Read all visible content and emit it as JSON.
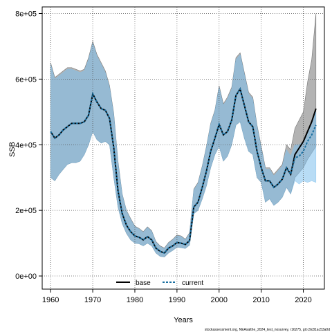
{
  "chart_data": {
    "type": "line",
    "title": "",
    "xlabel": "Years",
    "ylabel": "SSB",
    "xlim": [
      1958,
      2025
    ],
    "ylim": [
      -40000,
      820000
    ],
    "x_ticks": [
      1960,
      1970,
      1980,
      1990,
      2000,
      2010,
      2020
    ],
    "y_ticks": [
      0,
      200000,
      400000,
      600000,
      800000
    ],
    "y_tick_labels": [
      "0e+00",
      "2e+05",
      "4e+05",
      "6e+05",
      "8e+05"
    ],
    "grid": true,
    "legend_position": "bottom-center",
    "x": [
      1960,
      1961,
      1962,
      1963,
      1964,
      1965,
      1966,
      1967,
      1968,
      1969,
      1970,
      1971,
      1972,
      1973,
      1974,
      1975,
      1976,
      1977,
      1978,
      1979,
      1980,
      1981,
      1982,
      1983,
      1984,
      1985,
      1986,
      1987,
      1988,
      1989,
      1990,
      1991,
      1992,
      1993,
      1994,
      1995,
      1996,
      1997,
      1998,
      1999,
      2000,
      2001,
      2002,
      2003,
      2004,
      2005,
      2006,
      2007,
      2008,
      2009,
      2010,
      2011,
      2012,
      2013,
      2014,
      2015,
      2016,
      2017,
      2018,
      2019,
      2020,
      2021,
      2022,
      2023
    ],
    "series": [
      {
        "name": "base",
        "color": "#000000",
        "values": [
          440000,
          420000,
          430000,
          445000,
          455000,
          465000,
          465000,
          465000,
          470000,
          490000,
          555000,
          530000,
          510000,
          505000,
          480000,
          390000,
          260000,
          190000,
          155000,
          135000,
          122000,
          118000,
          110000,
          120000,
          110000,
          85000,
          75000,
          70000,
          85000,
          92000,
          102000,
          100000,
          96000,
          108000,
          210000,
          225000,
          270000,
          320000,
          380000,
          420000,
          462000,
          430000,
          440000,
          475000,
          550000,
          570000,
          520000,
          470000,
          455000,
          380000,
          330000,
          290000,
          290000,
          270000,
          280000,
          295000,
          330000,
          310000,
          370000,
          390000,
          410000,
          440000,
          470000,
          510000
        ],
        "lower": [
          300000,
          290000,
          310000,
          325000,
          340000,
          345000,
          345000,
          350000,
          370000,
          400000,
          440000,
          415000,
          405000,
          410000,
          400000,
          300000,
          210000,
          160000,
          130000,
          110000,
          100000,
          98000,
          92000,
          100000,
          92000,
          70000,
          60000,
          58000,
          70000,
          78000,
          88000,
          86000,
          84000,
          94000,
          190000,
          200000,
          235000,
          275000,
          330000,
          370000,
          395000,
          350000,
          365000,
          400000,
          460000,
          470000,
          420000,
          380000,
          370000,
          300000,
          285000,
          225000,
          235000,
          215000,
          225000,
          240000,
          270000,
          250000,
          300000,
          315000,
          330000,
          355000,
          375000,
          395000
        ],
        "upper": [
          650000,
          605000,
          615000,
          625000,
          635000,
          635000,
          630000,
          625000,
          630000,
          665000,
          715000,
          675000,
          650000,
          625000,
          580000,
          495000,
          350000,
          250000,
          200000,
          175000,
          152000,
          145000,
          135000,
          150000,
          138000,
          105000,
          92000,
          85000,
          102000,
          112000,
          125000,
          122000,
          112000,
          132000,
          265000,
          285000,
          335000,
          395000,
          465000,
          505000,
          580000,
          525000,
          545000,
          575000,
          665000,
          680000,
          620000,
          560000,
          545000,
          460000,
          395000,
          330000,
          330000,
          310000,
          325000,
          340000,
          400000,
          385000,
          450000,
          475000,
          500000,
          590000,
          660000,
          800000
        ]
      },
      {
        "name": "current",
        "color": "#1a6fa0",
        "values": [
          440000,
          420000,
          430000,
          445000,
          455000,
          465000,
          465000,
          465000,
          470000,
          490000,
          555000,
          530000,
          510000,
          505000,
          480000,
          390000,
          260000,
          190000,
          155000,
          135000,
          122000,
          118000,
          110000,
          120000,
          110000,
          85000,
          75000,
          70000,
          85000,
          92000,
          102000,
          100000,
          96000,
          108000,
          210000,
          225000,
          270000,
          320000,
          380000,
          420000,
          462000,
          430000,
          440000,
          475000,
          550000,
          570000,
          520000,
          470000,
          455000,
          380000,
          330000,
          290000,
          290000,
          270000,
          280000,
          295000,
          330000,
          310000,
          360000,
          365000,
          380000,
          410000,
          430000,
          460000
        ],
        "lower": [
          300000,
          290000,
          310000,
          325000,
          340000,
          345000,
          345000,
          350000,
          370000,
          400000,
          440000,
          415000,
          405000,
          410000,
          400000,
          300000,
          210000,
          160000,
          130000,
          110000,
          100000,
          98000,
          92000,
          100000,
          92000,
          70000,
          60000,
          58000,
          70000,
          78000,
          88000,
          86000,
          84000,
          94000,
          190000,
          200000,
          235000,
          275000,
          330000,
          370000,
          395000,
          350000,
          365000,
          400000,
          460000,
          470000,
          420000,
          380000,
          370000,
          300000,
          285000,
          225000,
          235000,
          215000,
          225000,
          240000,
          270000,
          250000,
          290000,
          280000,
          290000,
          285000,
          290000,
          285000
        ],
        "upper": [
          645000,
          600000,
          610000,
          620000,
          630000,
          630000,
          625000,
          620000,
          625000,
          660000,
          710000,
          670000,
          645000,
          620000,
          575000,
          490000,
          345000,
          248000,
          198000,
          172000,
          150000,
          143000,
          133000,
          148000,
          136000,
          103000,
          90000,
          83000,
          100000,
          110000,
          123000,
          120000,
          110000,
          130000,
          262000,
          282000,
          332000,
          392000,
          462000,
          502000,
          575000,
          520000,
          540000,
          570000,
          660000,
          675000,
          615000,
          555000,
          540000,
          455000,
          390000,
          325000,
          325000,
          305000,
          320000,
          335000,
          385000,
          365000,
          400000,
          400000,
          410000,
          440000,
          460000,
          500000
        ]
      }
    ]
  },
  "footer_text": "stockassessment.org, NEAsalthe_2024_test_nosurvey, r16275, git:c9c81ac53a0d"
}
